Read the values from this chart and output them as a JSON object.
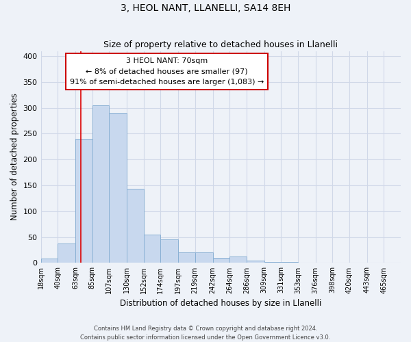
{
  "title": "3, HEOL NANT, LLANELLI, SA14 8EH",
  "subtitle": "Size of property relative to detached houses in Llanelli",
  "xlabel": "Distribution of detached houses by size in Llanelli",
  "ylabel": "Number of detached properties",
  "bin_labels": [
    "18sqm",
    "40sqm",
    "63sqm",
    "85sqm",
    "107sqm",
    "130sqm",
    "152sqm",
    "174sqm",
    "197sqm",
    "219sqm",
    "242sqm",
    "264sqm",
    "286sqm",
    "309sqm",
    "331sqm",
    "353sqm",
    "376sqm",
    "398sqm",
    "420sqm",
    "443sqm",
    "465sqm"
  ],
  "bar_heights": [
    8,
    37,
    240,
    305,
    290,
    143,
    55,
    45,
    20,
    20,
    10,
    13,
    5,
    2,
    2,
    1,
    1,
    1,
    1,
    1
  ],
  "bar_color": "#c8d8ee",
  "bar_edge_color": "#8ab0d4",
  "grid_color": "#d0d8e8",
  "background_color": "#eef2f8",
  "vline_x": 70,
  "vline_color": "#dd0000",
  "annotation_line1": "3 HEOL NANT: 70sqm",
  "annotation_line2": "← 8% of detached houses are smaller (97)",
  "annotation_line3": "91% of semi-detached houses are larger (1,083) →",
  "annotation_box_color": "#ffffff",
  "annotation_box_edge_color": "#cc0000",
  "ylim": [
    0,
    410
  ],
  "yticks": [
    0,
    50,
    100,
    150,
    200,
    250,
    300,
    350,
    400
  ],
  "footer_line1": "Contains HM Land Registry data © Crown copyright and database right 2024.",
  "footer_line2": "Contains public sector information licensed under the Open Government Licence v3.0."
}
